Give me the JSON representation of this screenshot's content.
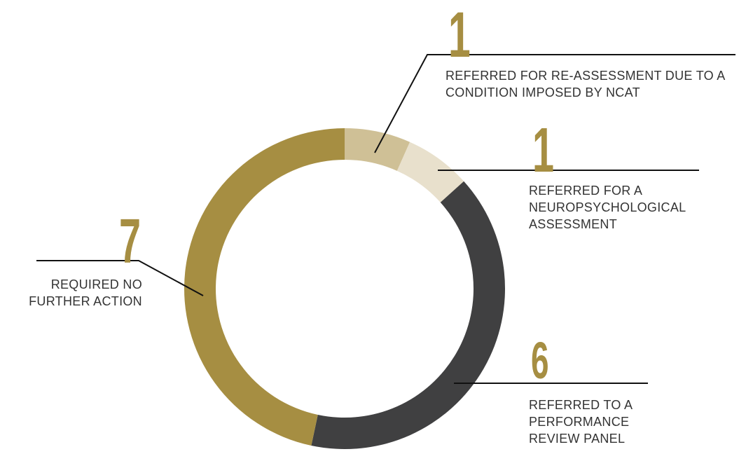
{
  "chart_data": {
    "type": "donut",
    "categories": [
      "REFERRED FOR RE-ASSESSMENT DUE TO A CONDITION IMPOSED BY NCAT",
      "REFERRED FOR A NEUROPSYCHOLOGICAL ASSESSMENT",
      "REFERRED TO A PERFORMANCE REVIEW PANEL",
      "REQUIRED NO FURTHER ACTION"
    ],
    "values": [
      1,
      1,
      6,
      7
    ],
    "colors": [
      "#cfc096",
      "#e8e0cc",
      "#404041",
      "#a68e42"
    ]
  }
}
